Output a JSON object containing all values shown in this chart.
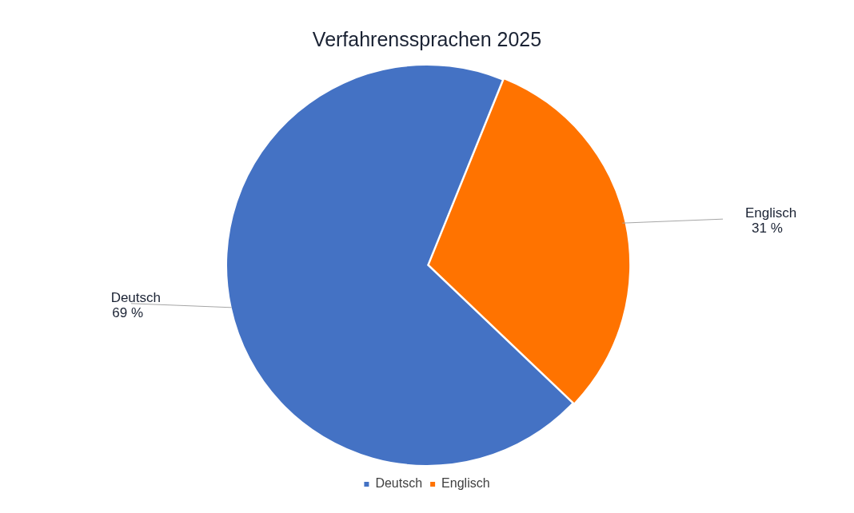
{
  "chart_data": {
    "type": "pie",
    "title": "Verfahrenssprachen 2025",
    "categories": [
      "Deutsch",
      "Englisch"
    ],
    "values": [
      69,
      31
    ],
    "colors": [
      "#4472c4",
      "#ff7300"
    ],
    "value_labels": [
      "69 %",
      "31 %"
    ],
    "legend": "bottom"
  }
}
